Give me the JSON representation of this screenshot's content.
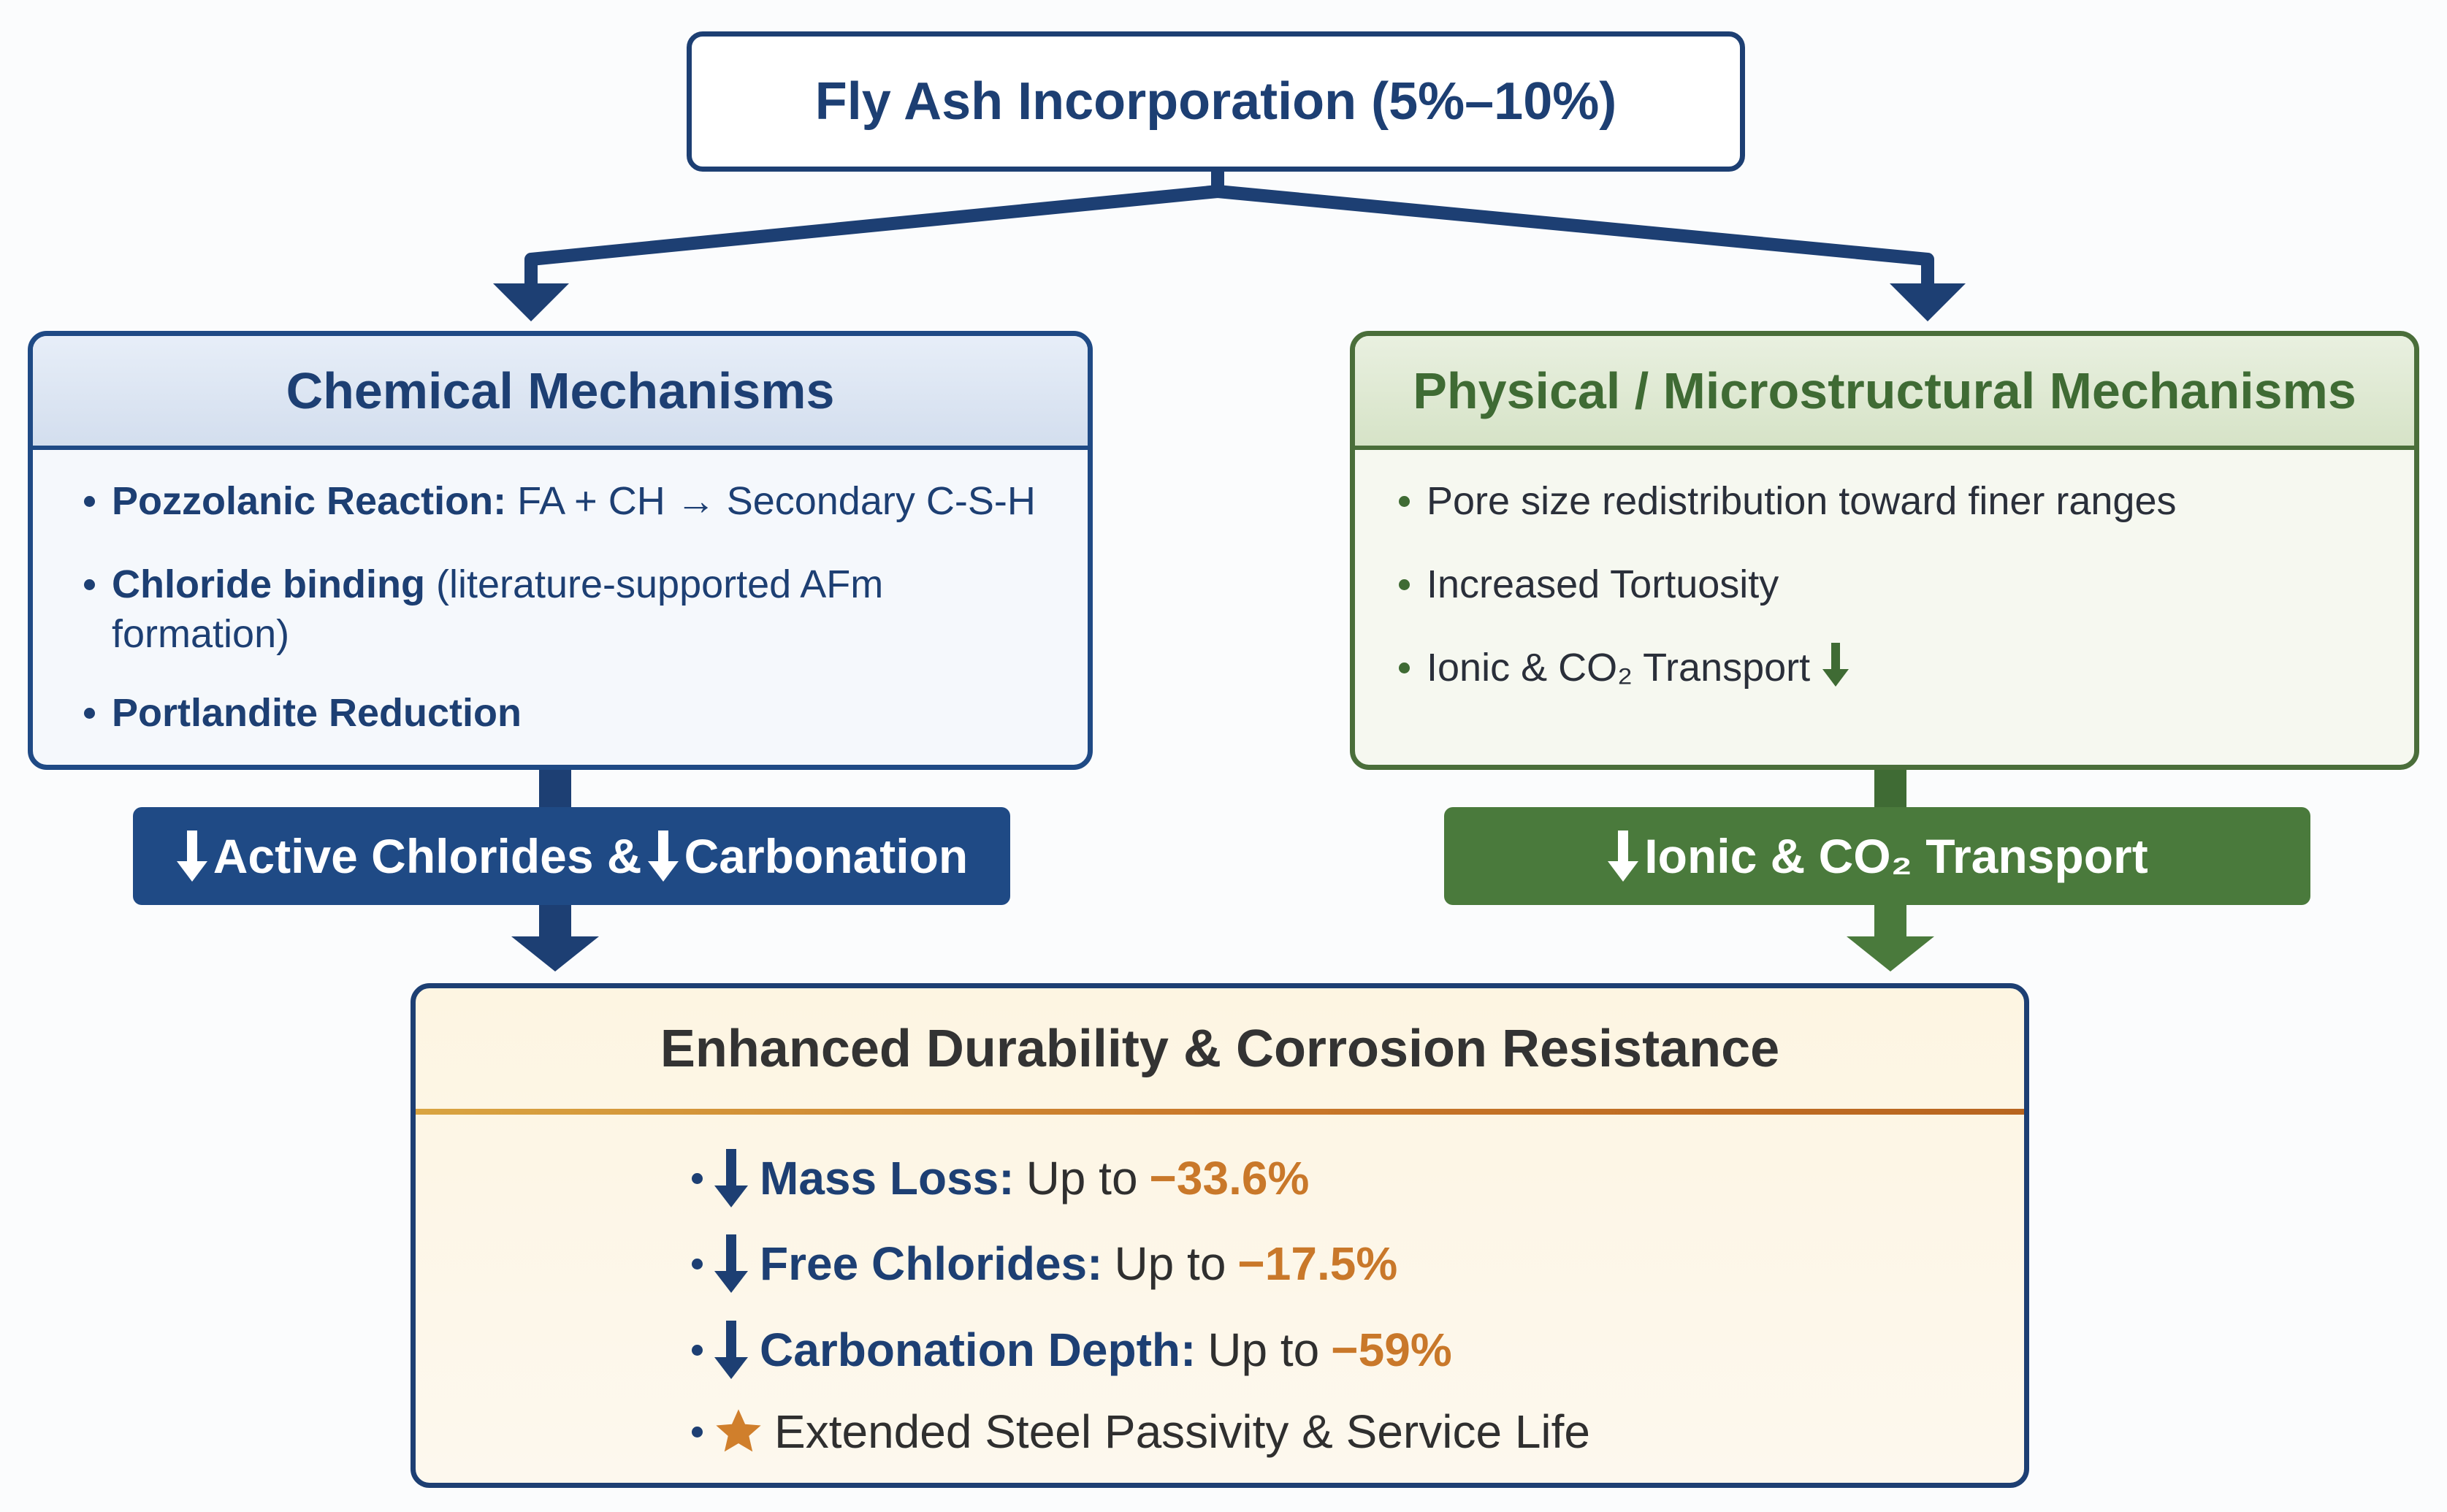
{
  "header": {
    "title": "Fly Ash Incorporation (5%–10%)"
  },
  "chemical": {
    "title": "Chemical Mechanisms",
    "items": [
      {
        "label": "Pozzolanic Reaction:",
        "text": "FA + CH → Secondary C-S-H"
      },
      {
        "label": "Chloride binding",
        "text": "(literature-supported AFm formation)"
      },
      {
        "label": "Portlandite Reduction"
      }
    ],
    "outcome": {
      "first": "Active Chlorides &",
      "second": "Carbonation"
    }
  },
  "physical": {
    "title": "Physical / Microstructural Mechanisms",
    "items": [
      {
        "text": "Pore size redistribution toward finer ranges"
      },
      {
        "text": "Increased Tortuosity"
      },
      {
        "text": "Ionic & CO₂ Transport"
      }
    ],
    "outcome": {
      "text": "Ionic & CO₂ Transport"
    }
  },
  "result": {
    "title": "Enhanced Durability & Corrosion Resistance",
    "items": [
      {
        "label": "Mass Loss:",
        "text": "Up to",
        "value": "−33.6%"
      },
      {
        "label": "Free Chlorides:",
        "text": "Up to",
        "value": "−17.5%"
      },
      {
        "label": "Carbonation Depth:",
        "text": "Up to",
        "value": "−59%"
      },
      {
        "text": "Extended Steel Passivity & Service Life"
      }
    ]
  }
}
